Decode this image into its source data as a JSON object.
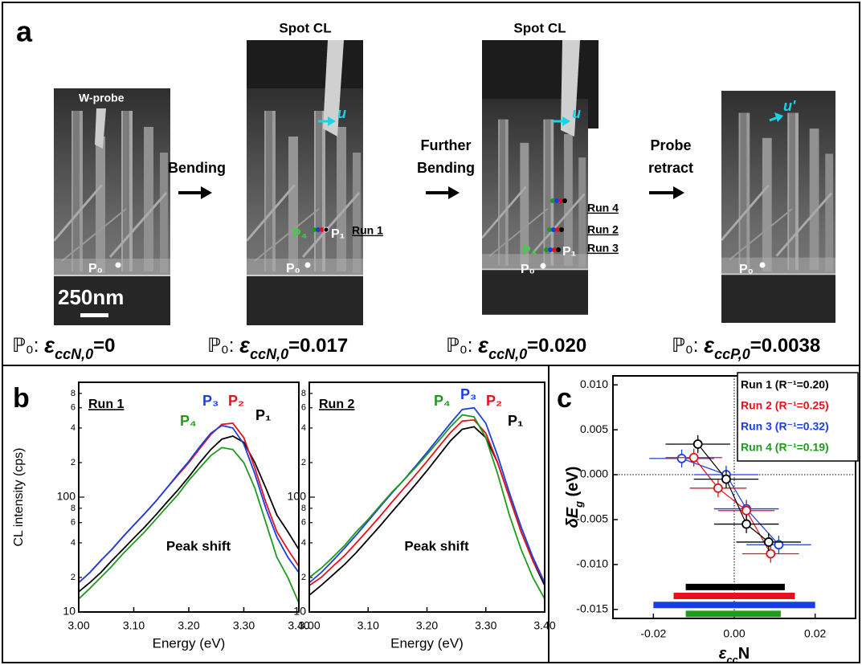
{
  "panel_a": {
    "label": "a",
    "image_1": {
      "probe": "W-probe",
      "point": "P₀",
      "scale_bar": "250nm",
      "caption": {
        "point": "ℙ₀:",
        "symbol": "ε",
        "subscript": "ccN,0",
        "value": "=0"
      }
    },
    "step_1": [
      "Bending"
    ],
    "image_2": {
      "title": "Spot CL",
      "marker": "u",
      "point_start": "P₄",
      "point_end": "P₁",
      "run": "Run 1",
      "point": "P₀",
      "caption": {
        "point": "ℙ₀:",
        "symbol": "ε",
        "subscript": "ccN,0",
        "value": "=0.017"
      }
    },
    "step_2": [
      "Further",
      "Bending"
    ],
    "image_3": {
      "title": "Spot CL",
      "marker": "u",
      "runs": [
        "Run 4",
        "Run 2",
        "Run 3"
      ],
      "point_start": "P₄",
      "point_end": "P₁",
      "point": "P₀",
      "caption": {
        "point": "ℙ₀:",
        "symbol": "ε",
        "subscript": "ccN,0",
        "value": "=0.020"
      }
    },
    "step_3": [
      "Probe",
      "retract"
    ],
    "image_4": {
      "marker": "u'",
      "point": "P₀",
      "caption": {
        "point": "ℙ₀:",
        "symbol": "ε",
        "subscript": "ccP,0",
        "value": "=0.0038"
      }
    }
  },
  "chart_data": [
    {
      "type": "line",
      "panel_label": "b",
      "label": "Run 1",
      "annotation": "Peak shift",
      "y_label": "CL intensity (cps)",
      "x_label": "Energy (eV)",
      "log_y": true,
      "xlim": [
        3.0,
        3.4
      ],
      "xticks": [
        {
          "value": 3.0,
          "label": "3.00"
        },
        {
          "value": 3.1,
          "label": "3.10"
        },
        {
          "value": 3.2,
          "label": "3.20"
        },
        {
          "value": 3.3,
          "label": "3.30"
        },
        {
          "value": 3.4,
          "label": "3.40"
        }
      ],
      "ylim": [
        10,
        1000
      ],
      "yticks": [
        10,
        {
          "value": 20,
          "label": "2"
        },
        {
          "value": 40,
          "label": "4"
        },
        {
          "value": 60,
          "label": "6"
        },
        {
          "value": 80,
          "label": "8"
        },
        100,
        {
          "value": 200,
          "label": "2"
        },
        {
          "value": 400,
          "label": "4"
        },
        {
          "value": 600,
          "label": "6"
        },
        {
          "value": 800,
          "label": "8"
        }
      ],
      "x": [
        3.0,
        3.02,
        3.04,
        3.06,
        3.08,
        3.1,
        3.12,
        3.14,
        3.16,
        3.18,
        3.2,
        3.22,
        3.24,
        3.26,
        3.28,
        3.3,
        3.32,
        3.34,
        3.36,
        3.38,
        3.4
      ],
      "series": [
        {
          "name": "P₁",
          "color": "#000000",
          "values": [
            15,
            18,
            22,
            28,
            35,
            44,
            55,
            70,
            90,
            115,
            150,
            200,
            260,
            320,
            340,
            300,
            200,
            120,
            70,
            50,
            35
          ]
        },
        {
          "name": "P₂",
          "color": "#e8101a",
          "values": [
            18,
            22,
            28,
            35,
            45,
            57,
            72,
            92,
            120,
            155,
            200,
            265,
            350,
            430,
            440,
            330,
            180,
            90,
            50,
            35,
            25
          ]
        },
        {
          "name": "P₃",
          "color": "#1a3fe0",
          "values": [
            18,
            22,
            28,
            35,
            45,
            57,
            72,
            92,
            120,
            158,
            205,
            275,
            360,
            420,
            400,
            290,
            160,
            80,
            45,
            30,
            22
          ]
        },
        {
          "name": "P₄",
          "color": "#1f9a1f",
          "values": [
            13,
            16,
            20,
            25,
            32,
            40,
            50,
            64,
            82,
            105,
            140,
            180,
            230,
            270,
            260,
            200,
            120,
            60,
            30,
            20,
            12
          ]
        }
      ]
    },
    {
      "type": "line",
      "label": "Run 2",
      "annotation": "Peak shift",
      "x_label": "Energy (eV)",
      "log_y": true,
      "xlim": [
        3.0,
        3.4
      ],
      "xticks": [
        {
          "value": 3.0,
          "label": "3.00"
        },
        {
          "value": 3.1,
          "label": "3.10"
        },
        {
          "value": 3.2,
          "label": "3.20"
        },
        {
          "value": 3.3,
          "label": "3.30"
        },
        {
          "value": 3.4,
          "label": "3.40"
        }
      ],
      "ylim": [
        10,
        1000
      ],
      "yticks": [
        10,
        {
          "value": 20,
          "label": "2"
        },
        {
          "value": 40,
          "label": "4"
        },
        {
          "value": 60,
          "label": "6"
        },
        {
          "value": 80,
          "label": "8"
        },
        100,
        {
          "value": 200,
          "label": "2"
        },
        {
          "value": 400,
          "label": "4"
        },
        {
          "value": 600,
          "label": "6"
        },
        {
          "value": 800,
          "label": "8"
        }
      ],
      "x": [
        3.0,
        3.02,
        3.04,
        3.06,
        3.08,
        3.1,
        3.12,
        3.14,
        3.16,
        3.18,
        3.2,
        3.22,
        3.24,
        3.26,
        3.28,
        3.3,
        3.32,
        3.34,
        3.36,
        3.38,
        3.4
      ],
      "series": [
        {
          "name": "P₁",
          "color": "#000000",
          "values": [
            14,
            17,
            21,
            26,
            33,
            43,
            56,
            74,
            97,
            128,
            170,
            230,
            310,
            390,
            410,
            330,
            200,
            100,
            50,
            28,
            17
          ]
        },
        {
          "name": "P₂",
          "color": "#e8101a",
          "values": [
            17,
            20,
            25,
            31,
            40,
            52,
            68,
            90,
            118,
            155,
            205,
            275,
            365,
            460,
            470,
            360,
            200,
            100,
            50,
            28,
            18
          ]
        },
        {
          "name": "P₃",
          "color": "#1a3fe0",
          "values": [
            18,
            22,
            28,
            36,
            47,
            62,
            82,
            108,
            140,
            185,
            245,
            330,
            440,
            580,
            600,
            440,
            230,
            110,
            55,
            30,
            18
          ]
        },
        {
          "name": "P₄",
          "color": "#1f9a1f",
          "values": [
            20,
            24,
            30,
            38,
            50,
            64,
            84,
            110,
            140,
            180,
            235,
            310,
            410,
            520,
            500,
            330,
            160,
            70,
            35,
            20,
            13
          ]
        }
      ]
    },
    {
      "type": "scatter",
      "panel_label": "c",
      "connect": true,
      "legend": "upper right",
      "x_label": {
        "main": "ε",
        "sub": "cc",
        "rest": "N"
      },
      "y_label": {
        "main": "δE",
        "sub": "g",
        "rest": " (eV)"
      },
      "xlim": [
        -0.03,
        0.03
      ],
      "xticks": [
        {
          "value": -0.02,
          "label": "-0.02"
        },
        {
          "value": 0,
          "label": "0.00"
        },
        {
          "value": 0.02,
          "label": "0.02"
        }
      ],
      "ylim": [
        -0.016,
        0.011
      ],
      "yticks": [
        {
          "value": 0.01,
          "label": "0.010"
        },
        {
          "value": 0.005,
          "label": "0.005"
        },
        {
          "value": 0,
          "label": "0.000"
        },
        {
          "value": -0.005,
          "label": "-0.005"
        },
        {
          "value": -0.01,
          "label": "-0.010"
        },
        {
          "value": -0.015,
          "label": "-0.015"
        }
      ],
      "series": [
        {
          "name": "Run 1 (R⁻¹=0.20)",
          "color": "#000000",
          "x": [
            -0.009,
            -0.002,
            0.003,
            0.0085
          ],
          "values": [
            0.0034,
            -0.0005,
            -0.0055,
            -0.0075
          ],
          "xerr": [
            0.008,
            0.008,
            0.008,
            0.008
          ],
          "yerr": [
            0.001,
            0.001,
            0.001,
            0.001
          ],
          "range": [
            -0.012,
            0.0125
          ],
          "range_y": -0.0125
        },
        {
          "name": "Run 2 (R⁻¹=0.25)",
          "color": "#e8101a",
          "x": [
            -0.01,
            -0.004,
            0.003,
            0.009
          ],
          "values": [
            0.0019,
            -0.0015,
            -0.004,
            -0.0088
          ],
          "xerr": [
            0.007,
            0.007,
            0.007,
            0.007
          ],
          "yerr": [
            0.001,
            0.001,
            0.001,
            0.001
          ],
          "range": [
            -0.015,
            0.015
          ],
          "range_y": -0.0135
        },
        {
          "name": "Run 3 (R⁻¹=0.32)",
          "color": "#1a3fe0",
          "x": [
            -0.013,
            -0.002,
            0.003,
            0.011
          ],
          "values": [
            0.0018,
            0,
            -0.0038,
            -0.0078
          ],
          "xerr": [
            0.008,
            0.008,
            0.008,
            0.008
          ],
          "yerr": [
            0.001,
            0.001,
            0.001,
            0.001
          ],
          "range": [
            -0.02,
            0.02
          ],
          "range_y": -0.0145
        },
        {
          "name": "Run 4 (R⁻¹=0.19)",
          "color": "#1f9a1f",
          "x": [],
          "values": [],
          "xerr": [],
          "yerr": [],
          "range": [
            -0.012,
            0.0115
          ],
          "range_y": -0.0155
        }
      ]
    }
  ]
}
